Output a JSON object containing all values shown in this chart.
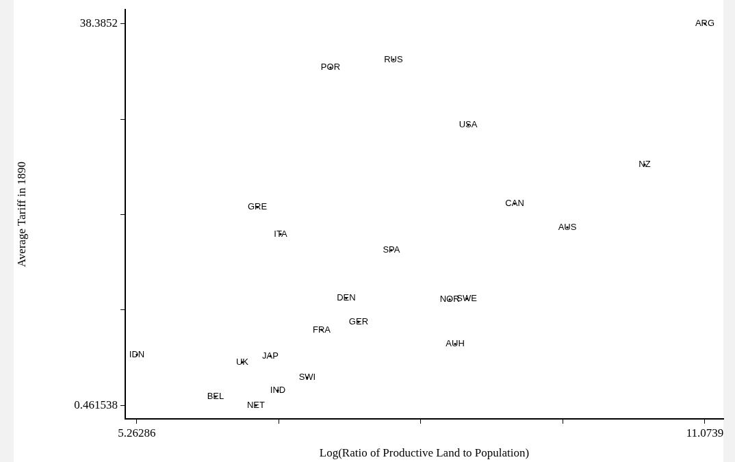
{
  "chart_data": {
    "type": "scatter",
    "xlabel": "Log(Ratio of Productive Land to Population)",
    "ylabel": "Average Tariff in 1890",
    "xlim": [
      5.144,
      11.263
    ],
    "ylim": [
      -0.878,
      39.79
    ],
    "xticks": [
      5.26286,
      {
        "value": 6.71562,
        "label": null
      },
      {
        "value": 8.16838,
        "label": null
      },
      {
        "value": 9.62114,
        "label": null
      },
      11.0739
    ],
    "yticks": [
      0.461538,
      {
        "value": 9.94245,
        "label": null
      },
      {
        "value": 19.4234,
        "label": null
      },
      {
        "value": 28.9043,
        "label": null
      },
      38.3852
    ],
    "legend": false,
    "series": [
      {
        "color": "#000000",
        "x": [
          11.0739,
          7.888,
          7.244,
          8.652,
          10.458,
          9.128,
          6.495,
          9.667,
          6.733,
          7.867,
          7.405,
          8.638,
          8.463,
          7.531,
          7.153,
          8.519,
          5.26286,
          6.628,
          6.341,
          7.006,
          6.705,
          6.068,
          6.481
        ],
        "values": [
          38.3852,
          34.83,
          34.03,
          28.33,
          24.38,
          20.5,
          20.16,
          18.15,
          17.48,
          15.87,
          11.12,
          11.05,
          10.98,
          8.77,
          7.97,
          6.56,
          5.49,
          5.35,
          4.75,
          3.21,
          1.94,
          1.33,
          0.461538
        ],
        "value_labels": [
          "ARG",
          "RUS",
          "POR",
          "USA",
          "NZ",
          "CAN",
          "GRE",
          "AUS",
          "ITA",
          "SPA",
          "DEN",
          "SWE",
          "NOR",
          "GER",
          "FRA",
          "AUH",
          "IDN",
          "JAP",
          "UK",
          "SWI",
          "IND",
          "BEL",
          "NET"
        ]
      }
    ]
  }
}
